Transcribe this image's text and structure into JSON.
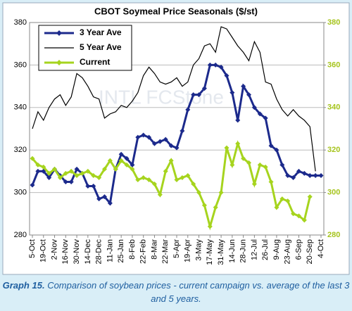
{
  "chart_data": {
    "type": "line",
    "title": "CBOT Soymeal Price Seasonals ($/st)",
    "watermark": "INTL FCStone",
    "caption_label": "Graph 15.",
    "caption": "Comparison of soybean prices - current campaign vs. average of the last 3 and 5 years.",
    "categories": [
      "5-Oct",
      null,
      "19-Oct",
      null,
      "2-Nov",
      null,
      "16-Nov",
      null,
      "30-Nov",
      null,
      "14-Dec",
      null,
      "28-Dec",
      null,
      "11-Jan",
      null,
      "25-Jan",
      null,
      "8-Feb",
      null,
      "22-Feb",
      null,
      "8-Mar",
      null,
      "22-Mar",
      null,
      "5-Apr",
      null,
      "19-Apr",
      null,
      "3-May",
      null,
      "17-May",
      null,
      "31-May",
      null,
      "14-Jun",
      null,
      "28-Jun",
      null,
      "12-Jul",
      null,
      "26-Jul",
      null,
      "9-Aug",
      null,
      "23-Aug",
      null,
      "6-Sep",
      null,
      "20-Sep",
      null,
      "4-Oct"
    ],
    "series": [
      {
        "name": "3 Year Ave",
        "color": "#1c2a8c",
        "marker": true,
        "width": 3,
        "values": [
          303.5,
          310,
          310,
          307,
          311,
          308,
          305,
          305,
          311,
          309,
          303,
          303,
          297,
          298,
          295,
          311,
          318,
          316,
          313,
          326,
          327,
          326,
          323,
          324,
          325,
          322,
          321,
          329,
          339,
          346,
          346,
          349,
          360,
          360,
          359,
          355,
          347,
          334,
          350,
          346,
          340,
          337,
          335,
          322,
          320,
          313,
          308,
          307,
          310,
          309,
          308,
          308,
          308
        ]
      },
      {
        "name": "5 Year Ave",
        "color": "#000000",
        "marker": false,
        "width": 1.2,
        "values": [
          330,
          338,
          334,
          340,
          344,
          346,
          341,
          345,
          356,
          354,
          350,
          345,
          344,
          335,
          337,
          338,
          341,
          340,
          343,
          347,
          355,
          359,
          356,
          352,
          351,
          352,
          354,
          350,
          352,
          360,
          363,
          369,
          370,
          366,
          378,
          377,
          373,
          369,
          366,
          362,
          371,
          366,
          352,
          351,
          344,
          339,
          336,
          339,
          336,
          334,
          331,
          310,
          null
        ]
      },
      {
        "name": "Current",
        "color": "#a6d41e",
        "marker": true,
        "width": 3,
        "values": [
          316,
          313,
          312,
          309,
          311,
          307,
          309,
          310,
          308,
          309,
          310,
          308,
          307,
          311,
          315,
          311,
          315,
          313,
          311,
          306,
          307,
          306,
          304,
          299,
          310,
          315,
          306,
          307,
          308,
          304,
          300,
          294,
          284,
          293,
          300,
          321,
          313,
          323,
          316,
          314,
          304,
          313,
          312,
          305,
          293,
          297,
          296,
          290,
          289,
          287,
          298,
          null,
          null
        ]
      }
    ],
    "ylim": [
      280,
      380
    ],
    "yticks": [
      280,
      300,
      320,
      340,
      360,
      380
    ],
    "y2lim": [
      280,
      380
    ],
    "y2ticks": [
      280,
      300,
      320,
      340,
      360,
      380
    ],
    "y2color": "#a6c41e",
    "grid": true,
    "legend": "top-left"
  }
}
